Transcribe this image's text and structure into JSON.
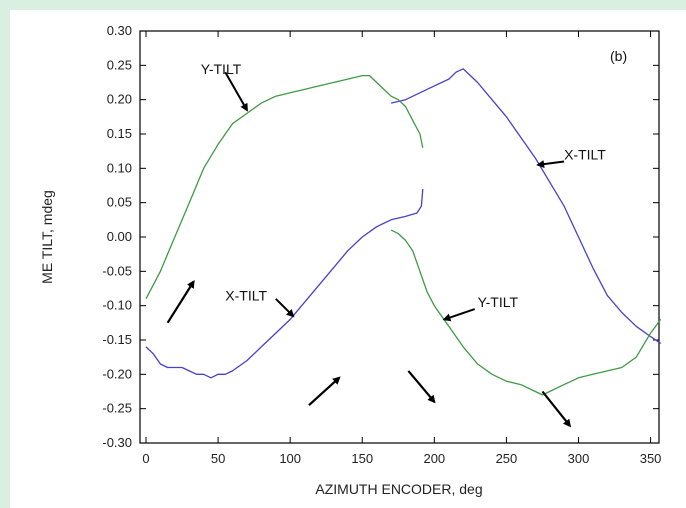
{
  "chart_data": {
    "type": "line",
    "panel_label": "(b)",
    "xlabel": "AZIMUTH ENCODER, deg",
    "ylabel": "ME TILT, mdeg",
    "xlim": [
      0,
      360
    ],
    "ylim": [
      -0.3,
      0.3
    ],
    "xticks": [
      "0",
      "50",
      "100",
      "150",
      "200",
      "250",
      "300",
      "350"
    ],
    "yticks": [
      "-0.30",
      "-0.25",
      "-0.20",
      "-0.15",
      "-0.10",
      "-0.05",
      "0.00",
      "0.05",
      "0.10",
      "0.15",
      "0.20",
      "0.25",
      "0.30"
    ],
    "grid": false,
    "series": [
      {
        "color": "#4a3fcf",
        "segments": [
          [
            [
              0,
              -0.16
            ],
            [
              5,
              -0.17
            ],
            [
              10,
              -0.185
            ],
            [
              15,
              -0.19
            ],
            [
              20,
              -0.19
            ],
            [
              25,
              -0.19
            ],
            [
              30,
              -0.195
            ],
            [
              35,
              -0.2
            ],
            [
              40,
              -0.2
            ],
            [
              45,
              -0.205
            ],
            [
              50,
              -0.2
            ],
            [
              55,
              -0.2
            ],
            [
              60,
              -0.195
            ],
            [
              70,
              -0.18
            ],
            [
              80,
              -0.16
            ],
            [
              90,
              -0.14
            ],
            [
              100,
              -0.12
            ],
            [
              110,
              -0.095
            ],
            [
              120,
              -0.07
            ],
            [
              130,
              -0.045
            ],
            [
              140,
              -0.02
            ],
            [
              150,
              0.0
            ],
            [
              160,
              0.015
            ],
            [
              170,
              0.025
            ],
            [
              180,
              0.03
            ],
            [
              188,
              0.035
            ],
            [
              191,
              0.045
            ],
            [
              192,
              0.07
            ]
          ],
          [
            [
              170,
              0.195
            ],
            [
              180,
              0.2
            ],
            [
              190,
              0.21
            ],
            [
              200,
              0.22
            ],
            [
              210,
              0.23
            ],
            [
              215,
              0.24
            ],
            [
              220,
              0.245
            ],
            [
              225,
              0.235
            ],
            [
              230,
              0.225
            ],
            [
              240,
              0.2
            ],
            [
              250,
              0.175
            ],
            [
              260,
              0.145
            ],
            [
              270,
              0.115
            ],
            [
              280,
              0.08
            ],
            [
              290,
              0.045
            ],
            [
              300,
              0.0
            ],
            [
              310,
              -0.045
            ],
            [
              320,
              -0.085
            ],
            [
              330,
              -0.11
            ],
            [
              340,
              -0.13
            ],
            [
              350,
              -0.145
            ],
            [
              357,
              -0.155
            ]
          ]
        ]
      },
      {
        "color": "#3f9a45",
        "segments": [
          [
            [
              0,
              -0.09
            ],
            [
              10,
              -0.05
            ],
            [
              20,
              0.0
            ],
            [
              30,
              0.05
            ],
            [
              40,
              0.1
            ],
            [
              50,
              0.135
            ],
            [
              60,
              0.165
            ],
            [
              70,
              0.18
            ],
            [
              80,
              0.195
            ],
            [
              90,
              0.205
            ],
            [
              100,
              0.21
            ],
            [
              110,
              0.215
            ],
            [
              120,
              0.22
            ],
            [
              130,
              0.225
            ],
            [
              140,
              0.23
            ],
            [
              150,
              0.235
            ],
            [
              155,
              0.235
            ],
            [
              160,
              0.225
            ],
            [
              165,
              0.215
            ],
            [
              170,
              0.205
            ],
            [
              175,
              0.2
            ],
            [
              180,
              0.19
            ],
            [
              185,
              0.17
            ],
            [
              190,
              0.15
            ],
            [
              192,
              0.13
            ]
          ],
          [
            [
              170,
              0.01
            ],
            [
              175,
              0.005
            ],
            [
              180,
              -0.005
            ],
            [
              185,
              -0.02
            ],
            [
              190,
              -0.05
            ],
            [
              195,
              -0.08
            ],
            [
              200,
              -0.1
            ],
            [
              205,
              -0.115
            ],
            [
              210,
              -0.13
            ],
            [
              220,
              -0.16
            ],
            [
              230,
              -0.185
            ],
            [
              240,
              -0.2
            ],
            [
              250,
              -0.21
            ],
            [
              260,
              -0.215
            ],
            [
              270,
              -0.225
            ],
            [
              275,
              -0.23
            ],
            [
              280,
              -0.225
            ],
            [
              290,
              -0.215
            ],
            [
              300,
              -0.205
            ],
            [
              310,
              -0.2
            ],
            [
              320,
              -0.195
            ],
            [
              330,
              -0.19
            ],
            [
              340,
              -0.175
            ],
            [
              350,
              -0.14
            ],
            [
              357,
              -0.12
            ]
          ]
        ]
      }
    ],
    "annotations": [
      {
        "text": "Y-TILT",
        "x": 38,
        "y": 0.245,
        "arrow_from": [
          55,
          0.24
        ],
        "arrow_to": [
          70,
          0.185
        ]
      },
      {
        "text": "X-TILT",
        "x": 290,
        "y": 0.12,
        "arrow_from": [
          290,
          0.11
        ],
        "arrow_to": [
          272,
          0.105
        ]
      },
      {
        "text": "X-TILT",
        "x": 55,
        "y": -0.085,
        "arrow_from": [
          90,
          -0.09
        ],
        "arrow_to": [
          102,
          -0.115
        ]
      },
      {
        "text": "Y-TILT",
        "x": 230,
        "y": -0.095,
        "arrow_from": [
          228,
          -0.105
        ],
        "arrow_to": [
          207,
          -0.12
        ]
      }
    ],
    "direction_arrows": [
      {
        "from": [
          15,
          -0.125
        ],
        "to": [
          33,
          -0.065
        ]
      },
      {
        "from": [
          113,
          -0.245
        ],
        "to": [
          134,
          -0.205
        ]
      },
      {
        "from": [
          182,
          -0.195
        ],
        "to": [
          200,
          -0.24
        ]
      },
      {
        "from": [
          275,
          -0.225
        ],
        "to": [
          294,
          -0.275
        ]
      }
    ]
  }
}
